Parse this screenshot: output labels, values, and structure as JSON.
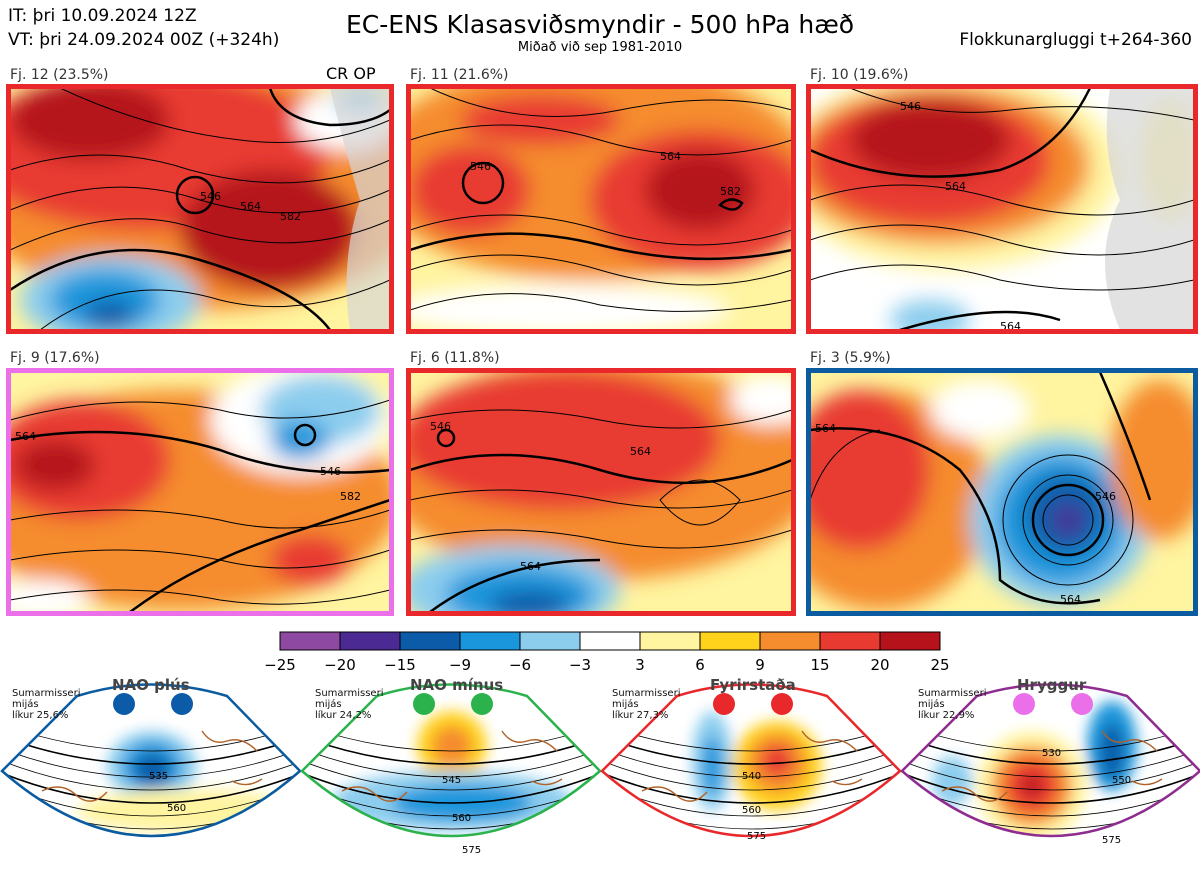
{
  "header": {
    "init_time": "IT: þri 10.09.2024 12Z",
    "valid_time": "VT: þri 24.09.2024 00Z  (+324h)",
    "title": "EC-ENS Klasasviðsmyndir - 500 hPa hæð",
    "subtitle": "Miðað við sep 1981-2010",
    "window": "Flokkunargluggi t+264-360"
  },
  "clusters": [
    {
      "label": "Fj. 12 (23.5%)",
      "border": "#e8282b",
      "extra": "CR OP"
    },
    {
      "label": "Fj. 11 (21.6%)",
      "border": "#e8282b"
    },
    {
      "label": "Fj. 10 (19.6%)",
      "border": "#e8282b"
    },
    {
      "label": "Fj. 9 (17.6%)",
      "border": "#ea6fe8"
    },
    {
      "label": "Fj. 6 (11.8%)",
      "border": "#e8282b"
    },
    {
      "label": "Fj. 3 (5.9%)",
      "border": "#0b5ba0"
    }
  ],
  "contour_labels": [
    "546",
    "564",
    "582"
  ],
  "chart_data": {
    "type": "heatmap",
    "colorbar": {
      "boundaries": [
        -25,
        -20,
        -15,
        -9,
        -6,
        -3,
        3,
        6,
        9,
        15,
        20,
        25
      ],
      "tick_labels": [
        "−25",
        "−20",
        "−15",
        "−9",
        "−6",
        "−3",
        "3",
        "6",
        "9",
        "15",
        "20",
        "25"
      ],
      "colors": [
        "#8e4aa2",
        "#4b2a94",
        "#0b5ba8",
        "#1a96dc",
        "#8ccdee",
        "#ffffff",
        "#fff4a0",
        "#ffd21c",
        "#f58c2e",
        "#e83a30",
        "#b5121b"
      ]
    }
  },
  "regimes": [
    {
      "name": "NAO plús",
      "season": "Sumarmisseri",
      "mean": "mijás",
      "prob": "líkur 25,6%",
      "dot_color": "#0b5ba8",
      "frame_color": "#0b5ba0",
      "contours": [
        "535",
        "560"
      ]
    },
    {
      "name": "NAO mínus",
      "season": "Sumarmisseri",
      "mean": "mijás",
      "prob": "líkur 24,2%",
      "dot_color": "#2bb24c",
      "frame_color": "#2bb24c",
      "contours": [
        "545",
        "560",
        "575"
      ]
    },
    {
      "name": "Fyrirstaða",
      "season": "Sumarmisseri",
      "mean": "mijás",
      "prob": "líkur 27,3%",
      "dot_color": "#e8282b",
      "frame_color": "#e8282b",
      "contours": [
        "540",
        "560",
        "575"
      ]
    },
    {
      "name": "Hryggur",
      "season": "Sumarmisseri",
      "mean": "mijás",
      "prob": "líkur 22,9%",
      "dot_color": "#ea6fe8",
      "frame_color": "#8e2c8f",
      "contours": [
        "530",
        "550",
        "575"
      ]
    }
  ]
}
